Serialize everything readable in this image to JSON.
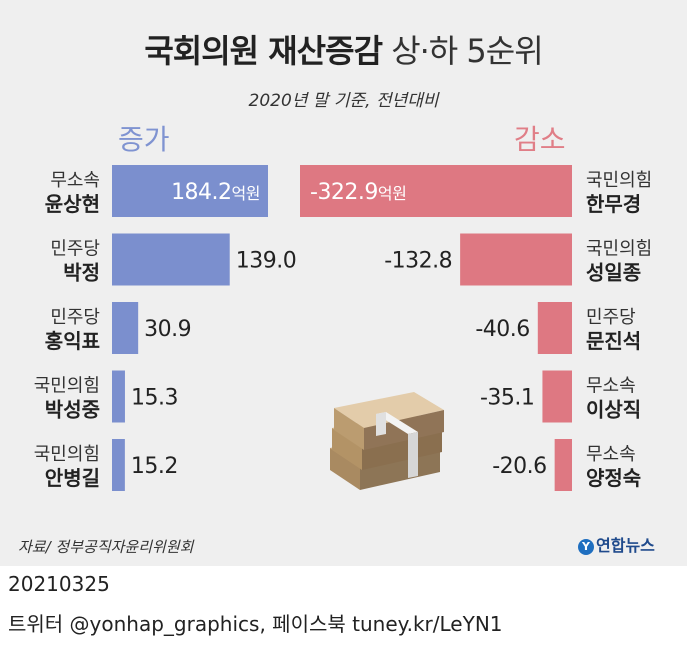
{
  "title": {
    "main": "국회의원 재산증감",
    "sub": "상·하 5순위"
  },
  "subtitle": "2020년 말 기준, 전년대비",
  "increase_header": "증가",
  "decrease_header": "감소",
  "unit_label": "억원",
  "source": "자료/ 정부공직자윤리위원회",
  "logo_text": "연합뉴스",
  "footer": {
    "date": "20210325",
    "social": "트위터 @yonhap_graphics, 페이스북 tuney.kr/LeYN1"
  },
  "colors": {
    "increase": "#7b8fce",
    "decrease": "#de7882",
    "background": "#efefef"
  },
  "chart_data": [
    {
      "type": "bar",
      "name": "증가",
      "orientation": "horizontal",
      "categories": [
        "윤상현",
        "박정",
        "홍익표",
        "박성중",
        "안병길"
      ],
      "parties": [
        "무소속",
        "민주당",
        "민주당",
        "국민의힘",
        "국민의힘"
      ],
      "values": [
        184.2,
        139.0,
        30.9,
        15.3,
        15.2
      ],
      "value_labels": [
        "184.2",
        "139.0",
        "30.9",
        "15.3",
        "15.2"
      ],
      "unit": "억원"
    },
    {
      "type": "bar",
      "name": "감소",
      "orientation": "horizontal",
      "categories": [
        "한무경",
        "성일종",
        "문진석",
        "이상직",
        "양정숙"
      ],
      "parties": [
        "국민의힘",
        "국민의힘",
        "민주당",
        "무소속",
        "무소속"
      ],
      "values": [
        -322.9,
        -132.8,
        -40.6,
        -35.1,
        -20.6
      ],
      "value_labels": [
        "-322.9",
        "-132.8",
        "-40.6",
        "-35.1",
        "-20.6"
      ],
      "unit": "억원"
    }
  ]
}
